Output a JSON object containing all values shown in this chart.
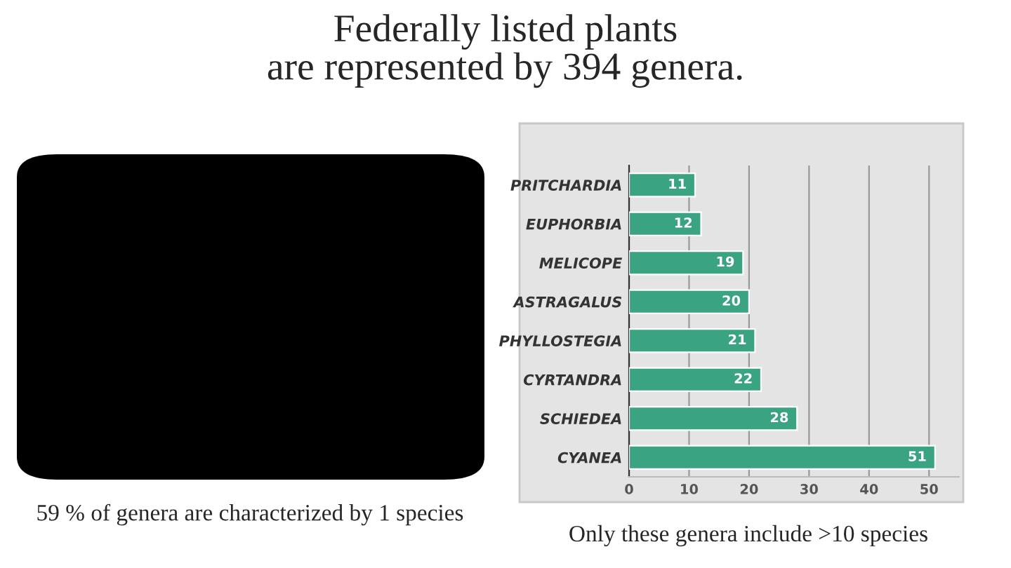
{
  "chart_data": {
    "type": "bar",
    "orientation": "horizontal",
    "title": "Federally listed plants\nare represented by 394 genera.",
    "categories": [
      "PRITCHARDIA",
      "EUPHORBIA",
      "MELICOPE",
      "ASTRAGALUS",
      "PHYLLOSTEGIA",
      "CYRTANDRA",
      "SCHIEDEA",
      "CYANEA"
    ],
    "values": [
      11,
      12,
      19,
      20,
      21,
      22,
      28,
      51
    ],
    "color": "#3aa382",
    "xlim": [
      0,
      55
    ],
    "xticks": [
      0,
      10,
      20,
      30,
      40,
      50
    ],
    "grid": "x",
    "data_labels": true,
    "legend": false,
    "annotations": [
      "59 % of genera are characterized by 1 species",
      "Only these genera include >10 species"
    ]
  }
}
